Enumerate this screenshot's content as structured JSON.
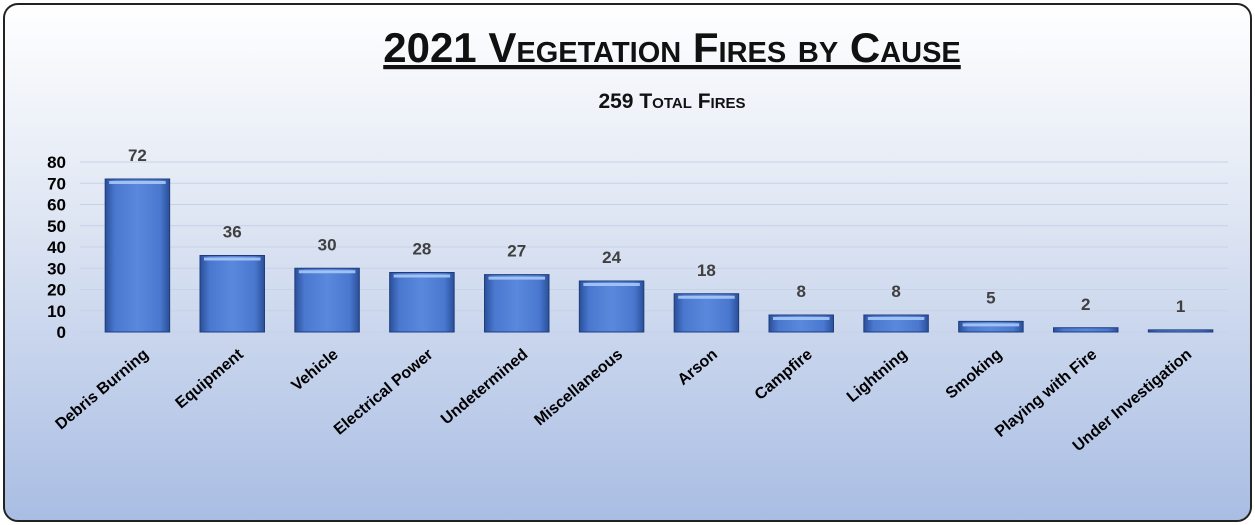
{
  "chart_data": {
    "type": "bar",
    "title": "2021 Vegetation Fires by Cause",
    "subtitle": "259 Total Fires",
    "categories": [
      "Debris Burning",
      "Equipment",
      "Vehicle",
      "Electrical Power",
      "Undetermined",
      "Miscellaneous",
      "Arson",
      "Campfire",
      "Lightning",
      "Smoking",
      "Playing with Fire",
      "Under Investigation"
    ],
    "values": [
      72,
      36,
      30,
      28,
      27,
      24,
      18,
      8,
      8,
      5,
      2,
      1
    ],
    "color": "#4472c4",
    "ylim": [
      0,
      80
    ],
    "yticks": [
      0,
      10,
      20,
      30,
      40,
      50,
      60,
      70,
      80
    ],
    "grid": true
  }
}
